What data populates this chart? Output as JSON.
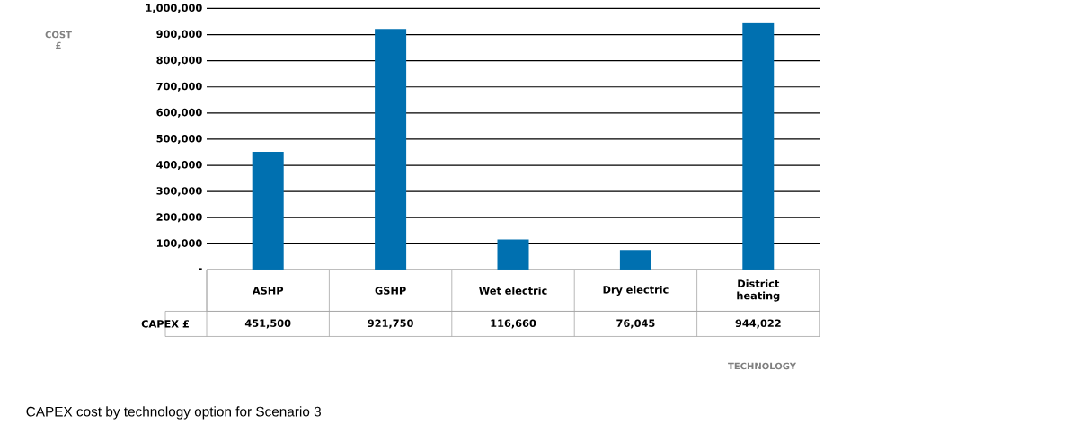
{
  "chart_data": {
    "type": "bar",
    "categories": [
      "ASHP",
      "GSHP",
      "Wet electric",
      "Dry electric",
      "District heating"
    ],
    "series": [
      {
        "name": "CAPEX £",
        "color": "#0070b0",
        "values": [
          451500,
          921750,
          116660,
          76045,
          944022
        ],
        "value_labels": [
          "451,500",
          "921,750",
          "116,660",
          "76,045",
          "944,022"
        ]
      }
    ],
    "ylim": [
      0,
      1000000
    ],
    "yticks": [
      {
        "value": 0,
        "label": "-"
      },
      {
        "value": 100000,
        "label": "100,000"
      },
      {
        "value": 200000,
        "label": "200,000"
      },
      {
        "value": 300000,
        "label": "300,000"
      },
      {
        "value": 400000,
        "label": "400,000"
      },
      {
        "value": 500000,
        "label": "500,000"
      },
      {
        "value": 600000,
        "label": "600,000"
      },
      {
        "value": 700000,
        "label": "700,000"
      },
      {
        "value": 800000,
        "label": "800,000"
      },
      {
        "value": 900000,
        "label": "900,000"
      },
      {
        "value": 1000000,
        "label": "1,000,000"
      }
    ],
    "grid": "y",
    "annotations": [
      "COST £",
      "TECHNOLOGY",
      "CAPEX cost by technology option for Scenario 3"
    ]
  }
}
